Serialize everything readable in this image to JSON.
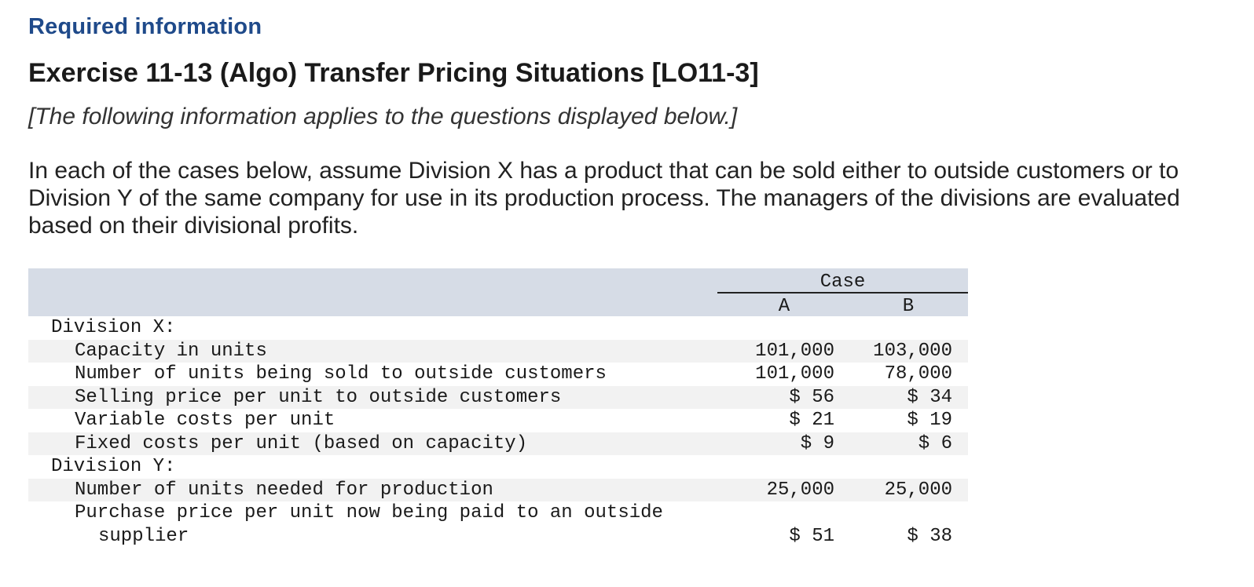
{
  "header": {
    "required_label": "Required information",
    "exercise_title": "Exercise 11-13 (Algo) Transfer Pricing Situations [LO11-3]",
    "intro_note": "[The following information applies to the questions displayed below.]"
  },
  "description": "In each of the cases below, assume Division X has a product that can be sold either to outside customers or to Division Y of the same company for use in its production process. The managers of the divisions are evaluated based on their divisional profits.",
  "table": {
    "case_label": "Case",
    "col_a": "A",
    "col_b": "B",
    "division_x_label": "Division X:",
    "division_y_label": "Division Y:",
    "division_x_rows": [
      {
        "label": "Capacity in units",
        "a": "101,000",
        "b": "103,000"
      },
      {
        "label": "Number of units being sold to outside customers",
        "a": "101,000",
        "b": "78,000"
      },
      {
        "label": "Selling price per unit to outside customers",
        "a": "$ 56",
        "b": "$ 34"
      },
      {
        "label": "Variable costs per unit",
        "a": "$ 21",
        "b": "$ 19"
      },
      {
        "label": "Fixed costs per unit (based on capacity)",
        "a": "$ 9",
        "b": "$ 6"
      }
    ],
    "division_y_rows": [
      {
        "label": "Number of units needed for production",
        "a": "25,000",
        "b": "25,000"
      },
      {
        "label_line1": "Purchase price per unit now being paid to an outside",
        "label_line2": "supplier",
        "a": "$ 51",
        "b": "$ 38"
      }
    ]
  }
}
